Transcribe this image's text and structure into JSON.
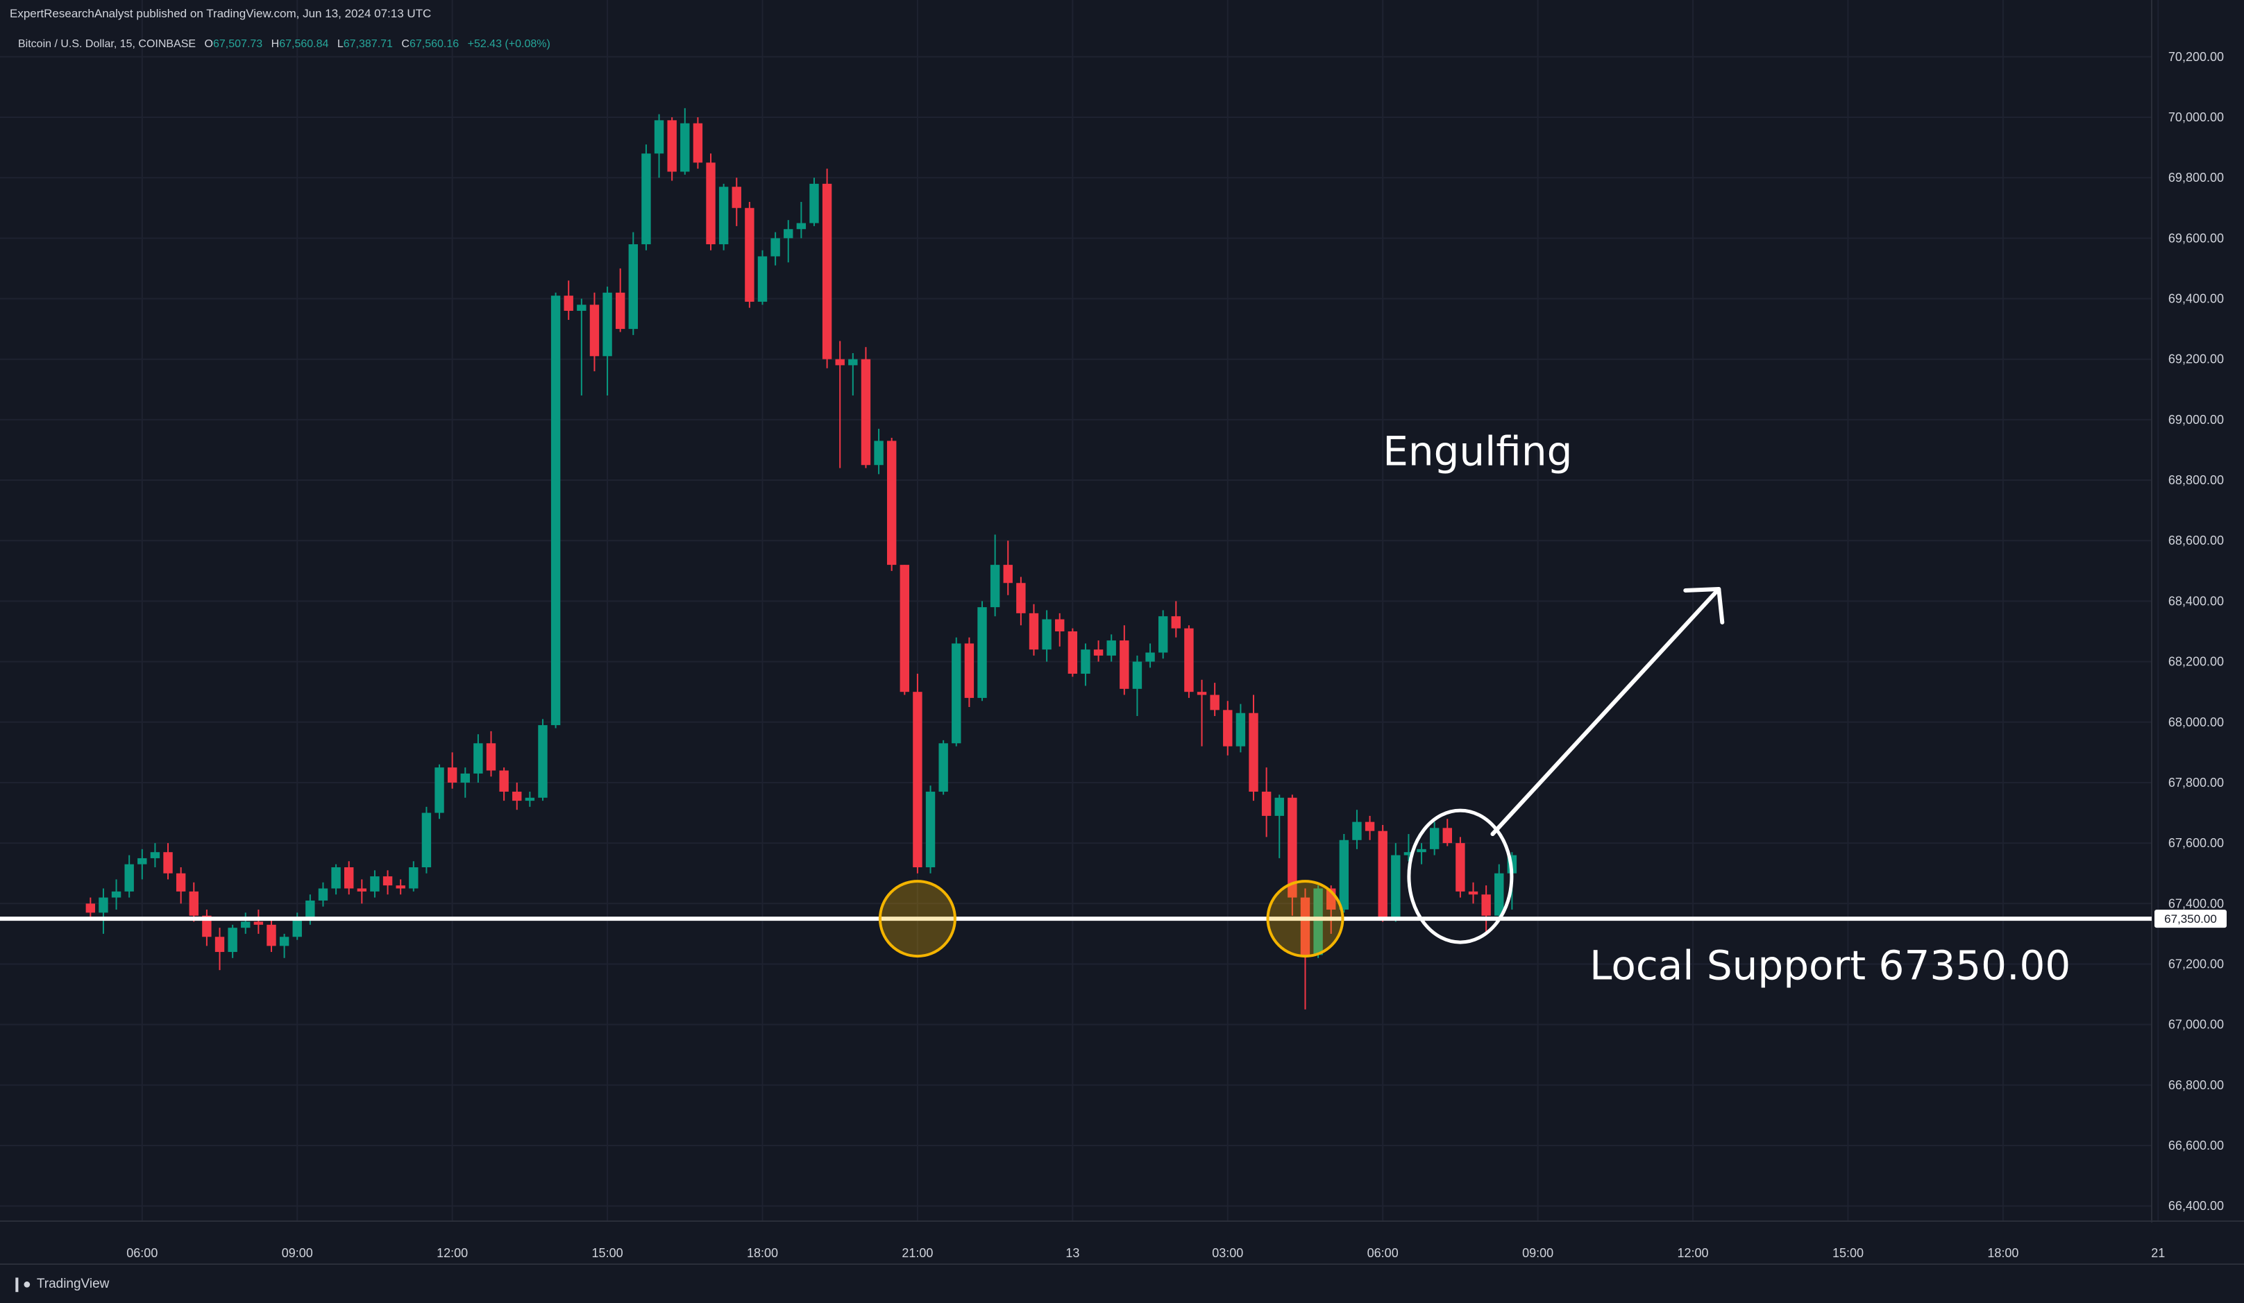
{
  "header": {
    "publisher_line": "ExpertResearchAnalyst published on TradingView.com, Jun 13, 2024 07:13 UTC"
  },
  "legend": {
    "symbol": "Bitcoin / U.S. Dollar, 15, COINBASE",
    "o_label": "O",
    "o_value": "67,507.73",
    "h_label": "H",
    "h_value": "67,560.84",
    "l_label": "L",
    "l_value": "67,387.71",
    "c_label": "C",
    "c_value": "67,560.16",
    "change": "+52.43 (+0.08%)"
  },
  "footer": {
    "brand": "TradingView",
    "logo": "tradingview-logo"
  },
  "colors": {
    "background": "#141823",
    "up": "#089981",
    "down": "#f23645",
    "support_line": "#ffffff",
    "highlight_circle": "#f4b400",
    "price_tag_bg": "#ffffff"
  },
  "chart_data": {
    "type": "candlestick",
    "symbol": "Bitcoin / U.S. Dollar",
    "interval": "15",
    "exchange": "COINBASE",
    "y_axis": {
      "range": [
        66350,
        70250
      ],
      "ticks": [
        66400,
        66600,
        66800,
        67000,
        67200,
        67400,
        67600,
        67800,
        68000,
        68200,
        68400,
        68600,
        68800,
        69000,
        69200,
        69400,
        69600,
        69800,
        70000,
        70200
      ],
      "tick_labels": [
        "66,400.00",
        "66,600.00",
        "66,800.00",
        "67,000.00",
        "67,200.00",
        "67,400.00",
        "67,600.00",
        "67,800.00",
        "68,000.00",
        "68,200.00",
        "68,400.00",
        "68,600.00",
        "68,800.00",
        "69,000.00",
        "69,200.00",
        "69,400.00",
        "69,600.00",
        "69,800.00",
        "70,000.00",
        "70,200.00"
      ]
    },
    "x_axis": {
      "ticks": [
        4,
        16,
        28,
        40,
        52,
        64,
        76,
        88,
        100,
        112,
        124,
        136,
        148,
        160
      ],
      "tick_labels": [
        "06:00",
        "09:00",
        "12:00",
        "15:00",
        "18:00",
        "21:00",
        "13",
        "03:00",
        "06:00",
        "09:00",
        "12:00",
        "15:00",
        "18:00",
        "21"
      ],
      "range": [
        -7,
        159.5
      ]
    },
    "grid": true,
    "candles": [
      [
        67400,
        67420,
        67350,
        67370
      ],
      [
        67370,
        67450,
        67300,
        67420
      ],
      [
        67420,
        67480,
        67380,
        67440
      ],
      [
        67440,
        67560,
        67420,
        67530
      ],
      [
        67530,
        67580,
        67480,
        67550
      ],
      [
        67550,
        67600,
        67520,
        67570
      ],
      [
        67570,
        67600,
        67480,
        67500
      ],
      [
        67500,
        67520,
        67400,
        67440
      ],
      [
        67440,
        67470,
        67340,
        67360
      ],
      [
        67360,
        67380,
        67260,
        67290
      ],
      [
        67290,
        67320,
        67180,
        67240
      ],
      [
        67240,
        67330,
        67220,
        67320
      ],
      [
        67320,
        67370,
        67300,
        67340
      ],
      [
        67340,
        67380,
        67300,
        67330
      ],
      [
        67330,
        67350,
        67240,
        67260
      ],
      [
        67260,
        67300,
        67220,
        67290
      ],
      [
        67290,
        67370,
        67280,
        67350
      ],
      [
        67350,
        67430,
        67330,
        67410
      ],
      [
        67410,
        67470,
        67390,
        67450
      ],
      [
        67450,
        67530,
        67430,
        67520
      ],
      [
        67520,
        67540,
        67430,
        67450
      ],
      [
        67450,
        67480,
        67400,
        67440
      ],
      [
        67440,
        67510,
        67420,
        67490
      ],
      [
        67490,
        67510,
        67430,
        67460
      ],
      [
        67460,
        67480,
        67430,
        67450
      ],
      [
        67450,
        67540,
        67440,
        67520
      ],
      [
        67520,
        67720,
        67500,
        67700
      ],
      [
        67700,
        67860,
        67680,
        67850
      ],
      [
        67850,
        67900,
        67780,
        67800
      ],
      [
        67800,
        67850,
        67750,
        67830
      ],
      [
        67830,
        67960,
        67800,
        67930
      ],
      [
        67930,
        67970,
        67820,
        67840
      ],
      [
        67840,
        67850,
        67740,
        67770
      ],
      [
        67770,
        67800,
        67710,
        67740
      ],
      [
        67740,
        67770,
        67720,
        67750
      ],
      [
        67750,
        68010,
        67740,
        67990
      ],
      [
        67990,
        69420,
        67980,
        69410
      ],
      [
        69410,
        69460,
        69330,
        69360
      ],
      [
        69360,
        69400,
        69080,
        69380
      ],
      [
        69380,
        69420,
        69160,
        69210
      ],
      [
        69210,
        69440,
        69080,
        69420
      ],
      [
        69420,
        69500,
        69290,
        69300
      ],
      [
        69300,
        69620,
        69280,
        69580
      ],
      [
        69580,
        69910,
        69560,
        69880
      ],
      [
        69880,
        70010,
        69800,
        69990
      ],
      [
        69990,
        70000,
        69790,
        69820
      ],
      [
        69820,
        70030,
        69810,
        69980
      ],
      [
        69980,
        70000,
        69830,
        69850
      ],
      [
        69850,
        69880,
        69560,
        69580
      ],
      [
        69580,
        69780,
        69560,
        69770
      ],
      [
        69770,
        69800,
        69640,
        69700
      ],
      [
        69700,
        69720,
        69370,
        69390
      ],
      [
        69390,
        69560,
        69380,
        69540
      ],
      [
        69540,
        69620,
        69510,
        69600
      ],
      [
        69600,
        69660,
        69520,
        69630
      ],
      [
        69630,
        69720,
        69600,
        69650
      ],
      [
        69650,
        69800,
        69640,
        69780
      ],
      [
        69780,
        69830,
        69170,
        69200
      ],
      [
        69200,
        69260,
        68840,
        69180
      ],
      [
        69180,
        69220,
        69080,
        69200
      ],
      [
        69200,
        69240,
        68840,
        68850
      ],
      [
        68850,
        68970,
        68820,
        68930
      ],
      [
        68930,
        68940,
        68500,
        68520
      ],
      [
        68520,
        68520,
        68090,
        68100
      ],
      [
        68100,
        68160,
        67500,
        67520
      ],
      [
        67520,
        67790,
        67500,
        67770
      ],
      [
        67770,
        67940,
        67760,
        67930
      ],
      [
        67930,
        68280,
        67920,
        68260
      ],
      [
        68260,
        68280,
        68050,
        68080
      ],
      [
        68080,
        68400,
        68070,
        68380
      ],
      [
        68380,
        68620,
        68350,
        68520
      ],
      [
        68520,
        68600,
        68420,
        68460
      ],
      [
        68460,
        68480,
        68320,
        68360
      ],
      [
        68360,
        68390,
        68220,
        68240
      ],
      [
        68240,
        68370,
        68200,
        68340
      ],
      [
        68340,
        68360,
        68250,
        68300
      ],
      [
        68300,
        68310,
        68150,
        68160
      ],
      [
        68160,
        68260,
        68120,
        68240
      ],
      [
        68240,
        68270,
        68200,
        68220
      ],
      [
        68220,
        68290,
        68200,
        68270
      ],
      [
        68270,
        68320,
        68090,
        68110
      ],
      [
        68110,
        68220,
        68020,
        68200
      ],
      [
        68200,
        68260,
        68180,
        68230
      ],
      [
        68230,
        68370,
        68210,
        68350
      ],
      [
        68350,
        68400,
        68280,
        68310
      ],
      [
        68310,
        68320,
        68080,
        68100
      ],
      [
        68100,
        68140,
        67920,
        68090
      ],
      [
        68090,
        68130,
        68020,
        68040
      ],
      [
        68040,
        68070,
        67890,
        67920
      ],
      [
        67920,
        68060,
        67900,
        68030
      ],
      [
        68030,
        68090,
        67740,
        67770
      ],
      [
        67770,
        67850,
        67620,
        67690
      ],
      [
        67690,
        67760,
        67550,
        67750
      ],
      [
        67750,
        67760,
        67360,
        67420
      ],
      [
        67420,
        67450,
        67050,
        67230
      ],
      [
        67230,
        67460,
        67220,
        67450
      ],
      [
        67450,
        67460,
        67300,
        67380
      ],
      [
        67380,
        67630,
        67370,
        67610
      ],
      [
        67610,
        67710,
        67580,
        67670
      ],
      [
        67670,
        67690,
        67610,
        67640
      ],
      [
        67640,
        67660,
        67340,
        67350
      ],
      [
        67350,
        67600,
        67340,
        67560
      ],
      [
        67560,
        67630,
        67540,
        67570
      ],
      [
        67570,
        67600,
        67530,
        67580
      ],
      [
        67580,
        67670,
        67560,
        67650
      ],
      [
        67650,
        67680,
        67590,
        67600
      ],
      [
        67600,
        67620,
        67420,
        67440
      ],
      [
        67440,
        67470,
        67400,
        67430
      ],
      [
        67430,
        67460,
        67300,
        67360
      ],
      [
        67360,
        67530,
        67350,
        67500
      ],
      [
        67500,
        67570,
        67380,
        67560
      ]
    ],
    "support": {
      "value": 67350,
      "label": "Local Support 67350.00",
      "price_tag": "67,350.00"
    },
    "annotations": [
      {
        "type": "text",
        "text": "Engulfing"
      },
      {
        "type": "circle",
        "color": "orange",
        "candle_index": 64,
        "price": 67350
      },
      {
        "type": "circle",
        "color": "orange",
        "candle_index": 94,
        "price": 67350
      },
      {
        "type": "ellipse",
        "color": "white",
        "candle_index": 106,
        "price": 67490
      },
      {
        "type": "arrow",
        "color": "white",
        "from": [
          108.5,
          67630
        ],
        "to": [
          126,
          68440
        ]
      }
    ]
  }
}
